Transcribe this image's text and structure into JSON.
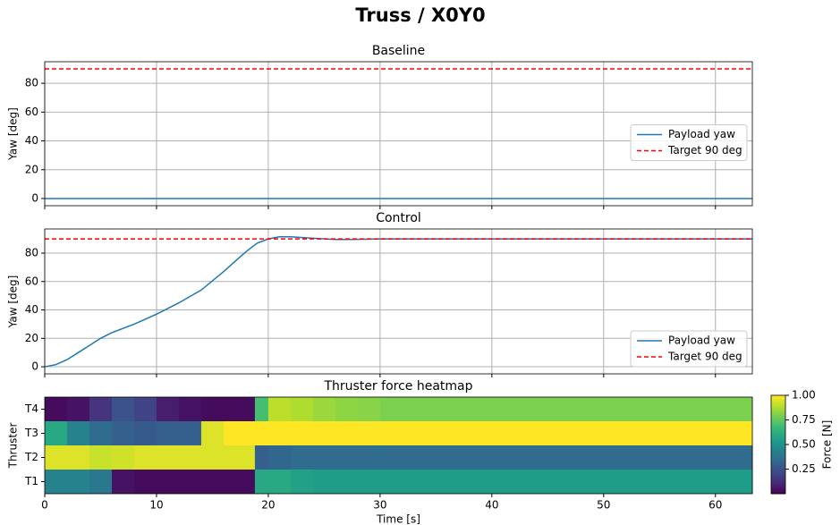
{
  "title": "Truss / X0Y0",
  "chart_data": [
    {
      "type": "line",
      "title": "Baseline",
      "ylabel": "Yaw [deg]",
      "x": [
        0,
        63.3
      ],
      "series": [
        {
          "name": "Payload yaw",
          "color": "#1f77b4",
          "dash": false,
          "values": [
            0,
            0
          ]
        },
        {
          "name": "Target 90 deg",
          "color": "#ff0000",
          "dash": true,
          "values": [
            90,
            90
          ]
        }
      ],
      "xlim": [
        0,
        63.3
      ],
      "xticks": [
        0,
        10,
        20,
        30,
        40,
        50,
        60
      ],
      "ylim": [
        -5,
        95
      ],
      "yticks": [
        0,
        20,
        40,
        60,
        80
      ],
      "grid": true,
      "legend": "center right"
    },
    {
      "type": "line",
      "title": "Control",
      "ylabel": "Yaw [deg]",
      "x": [
        0,
        1,
        2,
        3,
        4,
        5,
        6,
        8,
        10,
        12,
        14,
        16,
        18,
        19,
        20,
        21,
        22,
        24,
        26,
        28,
        30,
        40,
        50,
        63.3
      ],
      "series": [
        {
          "name": "Payload yaw",
          "color": "#1f77b4",
          "dash": false,
          "values": [
            0,
            1.5,
            5,
            10,
            15,
            20,
            24,
            30,
            37,
            45,
            54,
            67,
            81,
            87,
            90,
            91.5,
            91.5,
            90.5,
            89.6,
            89.7,
            90,
            90,
            90,
            90
          ]
        },
        {
          "name": "Target 90 deg",
          "color": "#ff0000",
          "dash": true,
          "values": [
            90,
            90,
            90,
            90,
            90,
            90,
            90,
            90,
            90,
            90,
            90,
            90,
            90,
            90,
            90,
            90,
            90,
            90,
            90,
            90,
            90,
            90,
            90,
            90
          ]
        }
      ],
      "xlim": [
        0,
        63.3
      ],
      "xticks": [
        0,
        10,
        20,
        30,
        40,
        50,
        60
      ],
      "ylim": [
        -5,
        97
      ],
      "yticks": [
        0,
        20,
        40,
        60,
        80
      ],
      "grid": true,
      "legend": "lower right"
    },
    {
      "type": "heatmap",
      "title": "Thruster force heatmap",
      "xlabel": "Time [s]",
      "ylabel": "Thruster",
      "categories": [
        "T1",
        "T2",
        "T3",
        "T4"
      ],
      "bins": [
        0,
        2,
        4,
        6,
        8,
        10,
        12,
        14,
        16,
        18.8,
        20,
        22,
        24,
        26,
        28,
        30,
        35,
        40,
        63.3
      ],
      "z": [
        [
          0.45,
          0.45,
          0.4,
          0.05,
          0.03,
          0.03,
          0.03,
          0.03,
          0.03,
          0.6,
          0.6,
          0.57,
          0.55,
          0.55,
          0.55,
          0.55,
          0.55,
          0.55
        ],
        [
          0.95,
          0.95,
          0.92,
          0.93,
          0.95,
          0.95,
          0.95,
          0.95,
          0.95,
          0.3,
          0.33,
          0.35,
          0.35,
          0.35,
          0.35,
          0.35,
          0.35,
          0.35
        ],
        [
          0.6,
          0.45,
          0.35,
          0.3,
          0.28,
          0.3,
          0.3,
          0.95,
          1,
          1,
          1,
          1,
          1,
          1,
          1,
          1,
          1,
          1
        ],
        [
          0.03,
          0.05,
          0.15,
          0.25,
          0.2,
          0.08,
          0.05,
          0.03,
          0.03,
          0.7,
          0.9,
          0.88,
          0.85,
          0.83,
          0.82,
          0.8,
          0.8,
          0.8
        ]
      ],
      "xlim": [
        0,
        63.3
      ],
      "xticks": [
        0,
        10,
        20,
        30,
        40,
        50,
        60
      ],
      "colormap": "viridis",
      "clim": [
        0,
        1
      ],
      "colorbar_label": "Force [N]",
      "cticks": [
        {
          "value": 0.25,
          "label": "0.25"
        },
        {
          "value": 0.5,
          "label": "0.50"
        },
        {
          "value": 0.75,
          "label": "0.75"
        },
        {
          "value": 1,
          "label": "1.00"
        }
      ]
    }
  ]
}
